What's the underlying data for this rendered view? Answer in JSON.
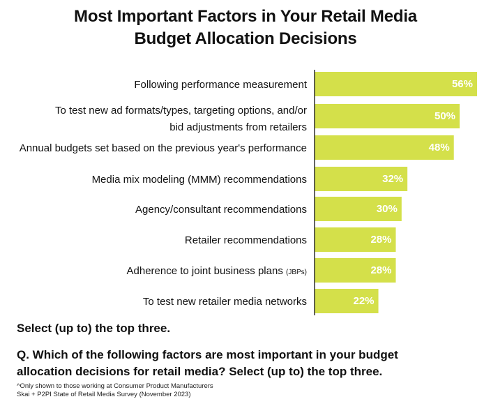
{
  "chart_data": {
    "type": "bar",
    "orientation": "horizontal",
    "title": "Most Important Factors in Your Retail Media Budget Allocation Decisions",
    "title_lines": [
      "Most Important Factors in Your Retail Media",
      "Budget Allocation Decisions"
    ],
    "categories": [
      "Following performance measurement",
      "To test new ad formats/types, targeting options, and/or bid adjustments from retailers",
      "Annual budgets set based on the previous year's performance",
      "Media mix modeling (MMM) recommendations",
      "Agency/consultant recommendations",
      "Retailer recommendations",
      "Adherence to joint business plans (JBPs)",
      "To test new retailer media networks"
    ],
    "category_display": [
      {
        "lines": [
          "Following performance measurement"
        ],
        "suffix": ""
      },
      {
        "lines": [
          "To test new ad formats/types, targeting options, and/or",
          "bid adjustments from retailers"
        ],
        "suffix": ""
      },
      {
        "lines": [
          "Annual budgets set based on the previous year's performance"
        ],
        "suffix": ""
      },
      {
        "lines": [
          "Media mix modeling (MMM) recommendations"
        ],
        "suffix": ""
      },
      {
        "lines": [
          "Agency/consultant recommendations"
        ],
        "suffix": ""
      },
      {
        "lines": [
          "Retailer recommendations"
        ],
        "suffix": ""
      },
      {
        "lines": [
          "Adherence to joint business plans"
        ],
        "suffix": "(JBPs)"
      },
      {
        "lines": [
          "To test new retailer media networks"
        ],
        "suffix": ""
      }
    ],
    "values": [
      56,
      50,
      48,
      32,
      30,
      28,
      28,
      22
    ],
    "value_labels": [
      "56%",
      "50%",
      "48%",
      "32%",
      "30%",
      "28%",
      "28%",
      "22%"
    ],
    "unit": "%",
    "xlim": [
      0,
      56
    ],
    "bar_color": "#d4e04a",
    "value_label_color": "#ffffff",
    "grid": false,
    "legend": "none"
  },
  "notes": {
    "select": "Select (up to) the top three.",
    "question_lines": [
      "Q. Which of the following factors are most important in your budget",
      "allocation decisions for retail media? Select (up to) the top three."
    ],
    "footnote_lines": [
      "^Only shown to those working at Consumer Product Manufacturers",
      "Skai + P2PI State of Retail Media Survey (November 2023)"
    ]
  }
}
